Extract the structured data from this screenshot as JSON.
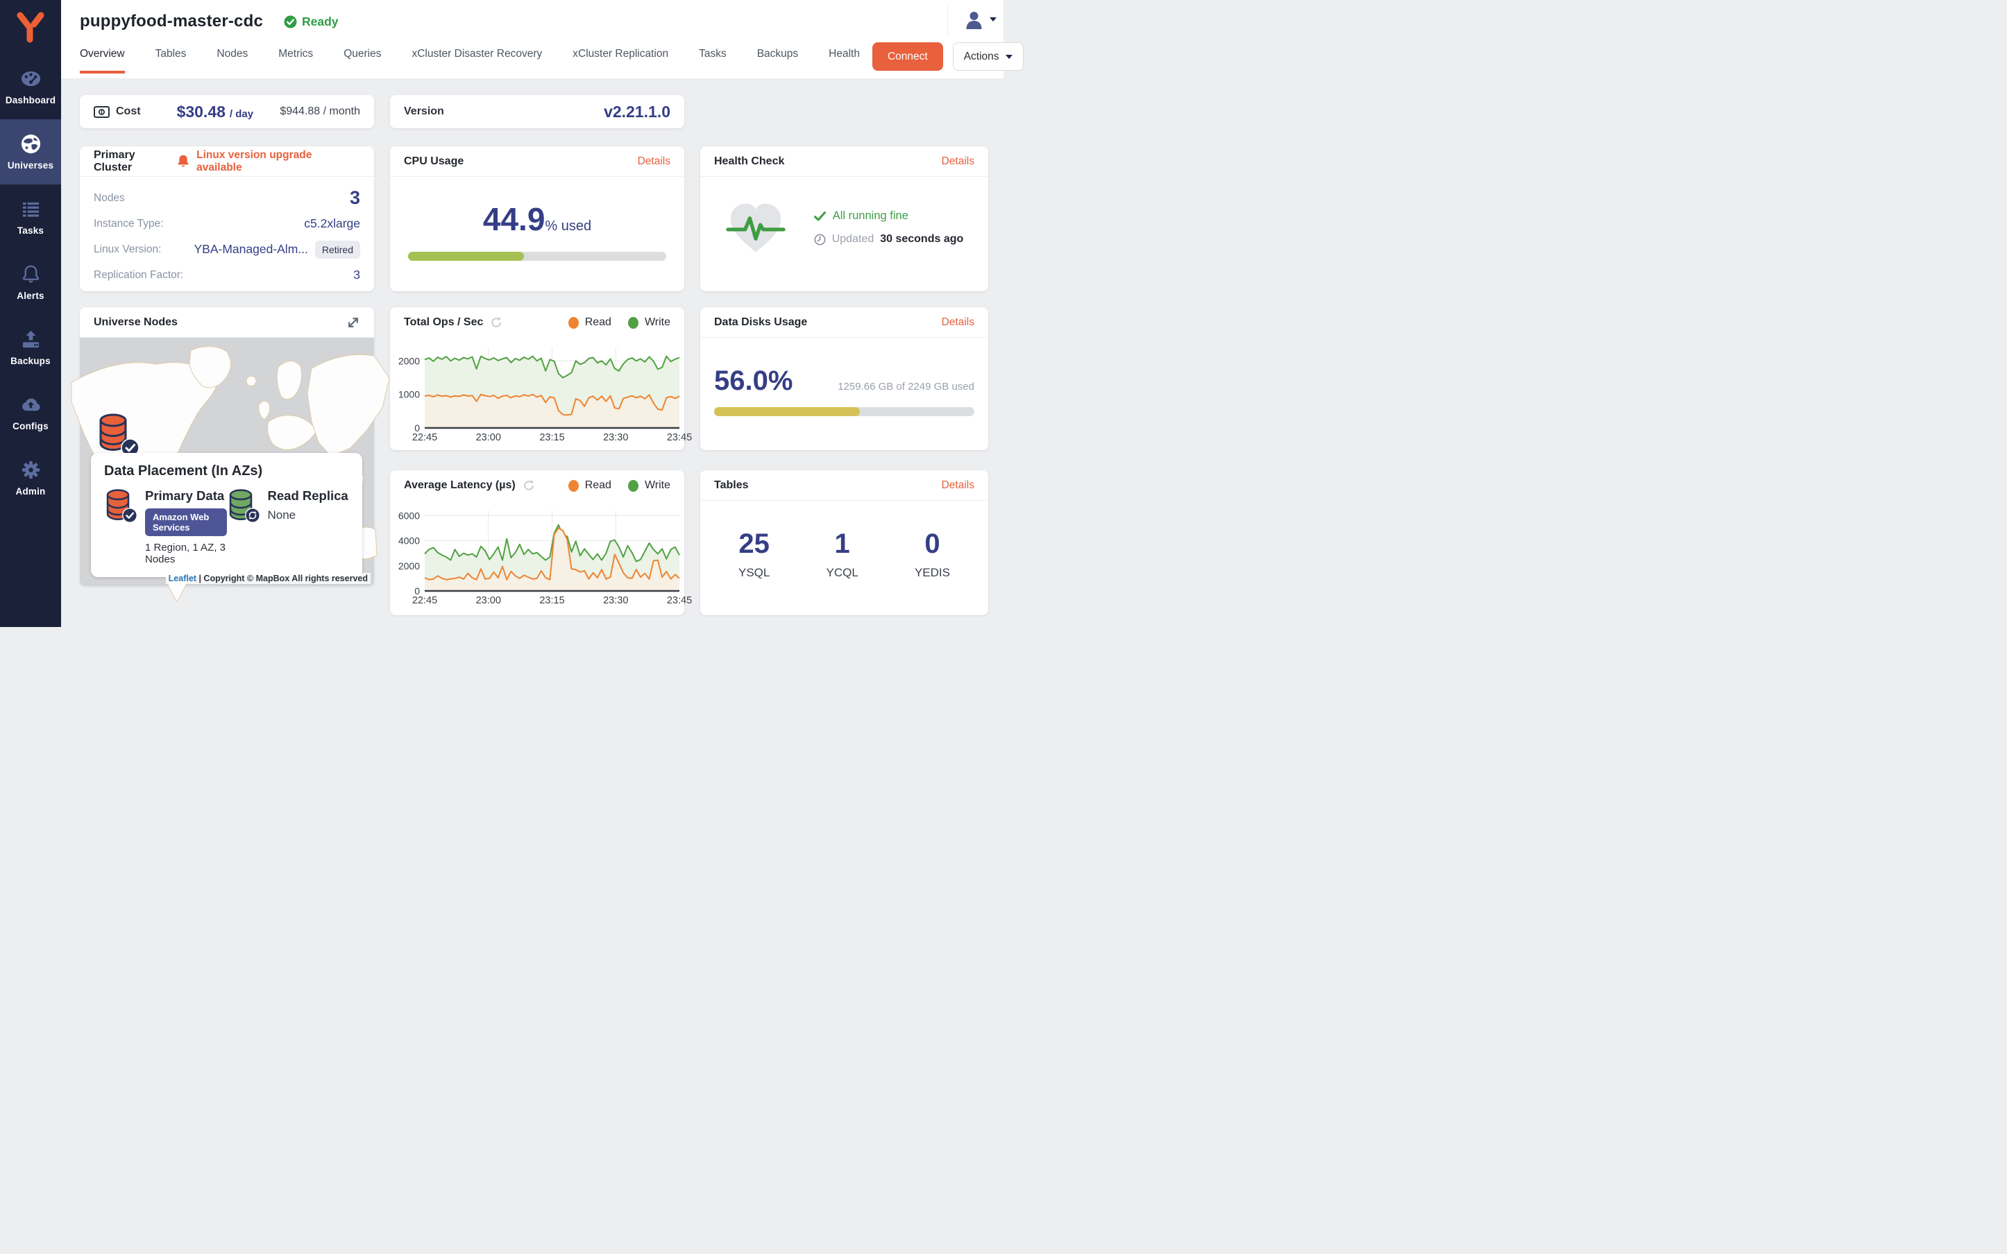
{
  "sidebar": {
    "items": [
      {
        "label": "Dashboard"
      },
      {
        "label": "Universes",
        "active": true
      },
      {
        "label": "Tasks"
      },
      {
        "label": "Alerts"
      },
      {
        "label": "Backups"
      },
      {
        "label": "Configs"
      },
      {
        "label": "Admin"
      }
    ]
  },
  "header": {
    "title": "puppyfood-master-cdc",
    "status": "Ready",
    "tabs": [
      {
        "label": "Overview",
        "active": true
      },
      {
        "label": "Tables"
      },
      {
        "label": "Nodes"
      },
      {
        "label": "Metrics"
      },
      {
        "label": "Queries"
      },
      {
        "label": "xCluster Disaster Recovery"
      },
      {
        "label": "xCluster Replication"
      },
      {
        "label": "Tasks"
      },
      {
        "label": "Backups"
      },
      {
        "label": "Health"
      }
    ],
    "connect_label": "Connect",
    "actions_label": "Actions"
  },
  "cost": {
    "label": "Cost",
    "daily_value": "$30.48",
    "daily_unit": "/ day",
    "monthly": "$944.88 / month"
  },
  "version": {
    "label": "Version",
    "value": "v2.21.1.0"
  },
  "primary_cluster": {
    "title": "Primary Cluster",
    "alert": "Linux version upgrade available",
    "nodes_label": "Nodes",
    "nodes_value": "3",
    "instance_label": "Instance Type:",
    "instance_value": "c5.2xlarge",
    "linux_label": "Linux Version:",
    "linux_value": "YBA-Managed-Alm...",
    "linux_badge": "Retired",
    "rf_label": "Replication Factor:",
    "rf_value": "3"
  },
  "cpu": {
    "title": "CPU Usage",
    "details_label": "Details",
    "value": "44.9",
    "suffix": "% used",
    "percent": 44.9
  },
  "health": {
    "title": "Health Check",
    "details_label": "Details",
    "status": "All running fine",
    "updated_label": "Updated",
    "updated_value": "30 seconds ago"
  },
  "universe_nodes": {
    "title": "Universe Nodes",
    "placement_title": "Data Placement (In AZs)",
    "primary_title": "Primary Data",
    "primary_badge": "Amazon Web Services",
    "primary_subtitle": "1 Region, 1 AZ, 3 Nodes",
    "replica_title": "Read Replica",
    "replica_value": "None",
    "attribution_link": "Leaflet",
    "attribution_text": "| Copyright © MapBox All rights reserved"
  },
  "disks": {
    "title": "Data Disks Usage",
    "details_label": "Details",
    "value": "56.0%",
    "detail": "1259.66 GB of 2249 GB used",
    "percent": 56
  },
  "tables": {
    "title": "Tables",
    "details_label": "Details",
    "counts": [
      {
        "value": "25",
        "label": "YSQL"
      },
      {
        "value": "1",
        "label": "YCQL"
      },
      {
        "value": "0",
        "label": "YEDIS"
      }
    ]
  },
  "colors": {
    "accent_orange": "#E8603C",
    "navy_value": "#353E85",
    "green_status": "#2F9E44",
    "cpu_bar": "#A5C153",
    "disk_bar": "#D5C256",
    "read_line": "#EE8433",
    "write_line": "#52A043",
    "sidebar_bg": "#1A2139",
    "sidebar_active": "#3B4670"
  },
  "chart_data": [
    {
      "type": "line",
      "title": "Total Ops / Sec",
      "xlabel": "",
      "ylabel": "",
      "x_ticks": [
        "22:45",
        "23:00",
        "23:15",
        "23:30",
        "23:45"
      ],
      "y_ticks": [
        0,
        1000,
        2000
      ],
      "ylim": [
        0,
        2400
      ],
      "grid": true,
      "legend_position": "top-right",
      "legend": [
        {
          "label": "Read",
          "color": "#EE8433"
        },
        {
          "label": "Write",
          "color": "#52A043"
        }
      ],
      "series": [
        {
          "name": "Write",
          "color": "#52A043",
          "fill": "#EAF3E6",
          "values": [
            2040,
            2090,
            1990,
            2110,
            2050,
            2130,
            2000,
            2080,
            2020,
            2100,
            2060,
            2120,
            1760,
            2140,
            2070,
            2030,
            2090,
            2010,
            2060,
            2100,
            1950,
            2070,
            2020,
            2110,
            2050,
            2140,
            2000,
            2080,
            1700,
            2040,
            1990,
            1620,
            1500,
            1570,
            1650,
            2000,
            1900,
            1950,
            2070,
            2100,
            1940,
            2000,
            1880,
            2060,
            1770,
            1700,
            1910,
            2040,
            2090,
            2000,
            2060,
            1970,
            2120,
            1990,
            1750,
            1810,
            2140,
            1980,
            2050,
            2100
          ]
        },
        {
          "name": "Read",
          "color": "#EE8433",
          "fill": "#F7F0E4",
          "values": [
            950,
            975,
            930,
            985,
            945,
            965,
            920,
            958,
            940,
            985,
            952,
            968,
            795,
            1000,
            962,
            938,
            970,
            885,
            948,
            972,
            900,
            958,
            932,
            988,
            950,
            1000,
            922,
            968,
            760,
            930,
            898,
            520,
            400,
            385,
            405,
            870,
            820,
            645,
            900,
            948,
            832,
            948,
            792,
            958,
            600,
            572,
            878,
            918,
            958,
            900,
            948,
            870,
            985,
            740,
            560,
            535,
            900,
            938,
            882,
            948
          ]
        }
      ]
    },
    {
      "type": "line",
      "title": "Average Latency (µs)",
      "xlabel": "",
      "ylabel": "",
      "x_ticks": [
        "22:45",
        "23:00",
        "23:15",
        "23:30",
        "23:45"
      ],
      "y_ticks": [
        0,
        2000,
        4000,
        6000
      ],
      "ylim": [
        0,
        6400
      ],
      "grid": true,
      "legend_position": "top-right",
      "legend": [
        {
          "label": "Read",
          "color": "#EE8433"
        },
        {
          "label": "Write",
          "color": "#52A043"
        }
      ],
      "series": [
        {
          "name": "Write",
          "color": "#52A043",
          "fill": "#EAF3E6",
          "values": [
            2950,
            3300,
            3450,
            3050,
            2850,
            2700,
            2450,
            3300,
            2750,
            3000,
            2850,
            2950,
            2700,
            3550,
            3200,
            2500,
            2950,
            3500,
            2450,
            4150,
            2650,
            3050,
            3700,
            2900,
            3300,
            2950,
            3050,
            2750,
            2450,
            2700,
            4600,
            5250,
            4400,
            4350,
            3100,
            3950,
            2800,
            3350,
            2900,
            2500,
            2950,
            2450,
            3000,
            3950,
            4050,
            3500,
            2700,
            3600,
            3050,
            2350,
            2500,
            3150,
            3800,
            3300,
            2950,
            3350,
            2550,
            3300,
            3500,
            2850
          ]
        },
        {
          "name": "Read",
          "color": "#EE8433",
          "fill": "#F7F0E4",
          "values": [
            1050,
            900,
            950,
            1200,
            1000,
            900,
            950,
            1000,
            1100,
            950,
            1400,
            1050,
            900,
            1750,
            950,
            1000,
            1500,
            1050,
            1950,
            900,
            1550,
            1200,
            1000,
            1250,
            1100,
            950,
            1000,
            1600,
            1050,
            900,
            4500,
            5000,
            4800,
            4100,
            1750,
            1700,
            1500,
            1600,
            950,
            1450,
            1050,
            1700,
            950,
            1100,
            2900,
            2200,
            1450,
            1050,
            1000,
            1700,
            1100,
            1400,
            950,
            2400,
            2450,
            1100,
            1550,
            950,
            1300,
            1000
          ]
        }
      ]
    }
  ]
}
